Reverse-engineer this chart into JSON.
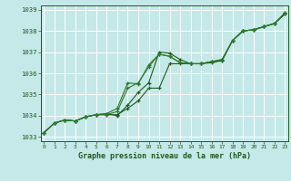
{
  "title": "Graphe pression niveau de la mer (hPa)",
  "x": [
    0,
    1,
    2,
    3,
    4,
    5,
    6,
    7,
    8,
    9,
    10,
    11,
    12,
    13,
    14,
    15,
    16,
    17,
    18,
    19,
    20,
    21,
    22,
    23
  ],
  "ylim": [
    1032.8,
    1039.2
  ],
  "xlim": [
    -0.3,
    23.3
  ],
  "yticks": [
    1033,
    1034,
    1035,
    1036,
    1037,
    1038,
    1039
  ],
  "bg_color": "#c5e8e8",
  "grid_color": "#ffffff",
  "dark_green": "#1e5c1e",
  "mid_green": "#2d7a2d",
  "line1_y": [
    1033.2,
    1033.65,
    1033.8,
    1033.75,
    1033.95,
    1034.05,
    1034.05,
    1034.05,
    1034.35,
    1034.7,
    1035.3,
    1035.3,
    1036.45,
    1036.45,
    1036.45,
    1036.45,
    1036.55,
    1036.6,
    1037.55,
    1038.0,
    1038.05,
    1038.2,
    1038.35,
    1038.8
  ],
  "line2_y": [
    1033.2,
    1033.65,
    1033.8,
    1033.75,
    1033.95,
    1034.05,
    1034.1,
    1034.0,
    1034.5,
    1035.1,
    1035.55,
    1037.0,
    1036.95,
    1036.65,
    1036.45,
    1036.45,
    1036.5,
    1036.6,
    1037.55,
    1038.0,
    1038.05,
    1038.2,
    1038.35,
    1038.8
  ],
  "line3_y": [
    1033.2,
    1033.65,
    1033.8,
    1033.75,
    1033.95,
    1034.05,
    1034.05,
    1034.2,
    1035.3,
    1035.55,
    1036.3,
    1036.9,
    1036.8,
    1036.5,
    1036.45,
    1036.45,
    1036.55,
    1036.65,
    1037.55,
    1038.0,
    1038.05,
    1038.2,
    1038.35,
    1038.85
  ],
  "line4_y": [
    1033.2,
    1033.65,
    1033.8,
    1033.75,
    1033.95,
    1034.05,
    1034.1,
    1034.35,
    1035.55,
    1035.5,
    1036.4,
    1036.9,
    1036.8,
    1036.5,
    1036.45,
    1036.45,
    1036.55,
    1036.65,
    1037.55,
    1038.0,
    1038.05,
    1038.2,
    1038.35,
    1038.85
  ]
}
